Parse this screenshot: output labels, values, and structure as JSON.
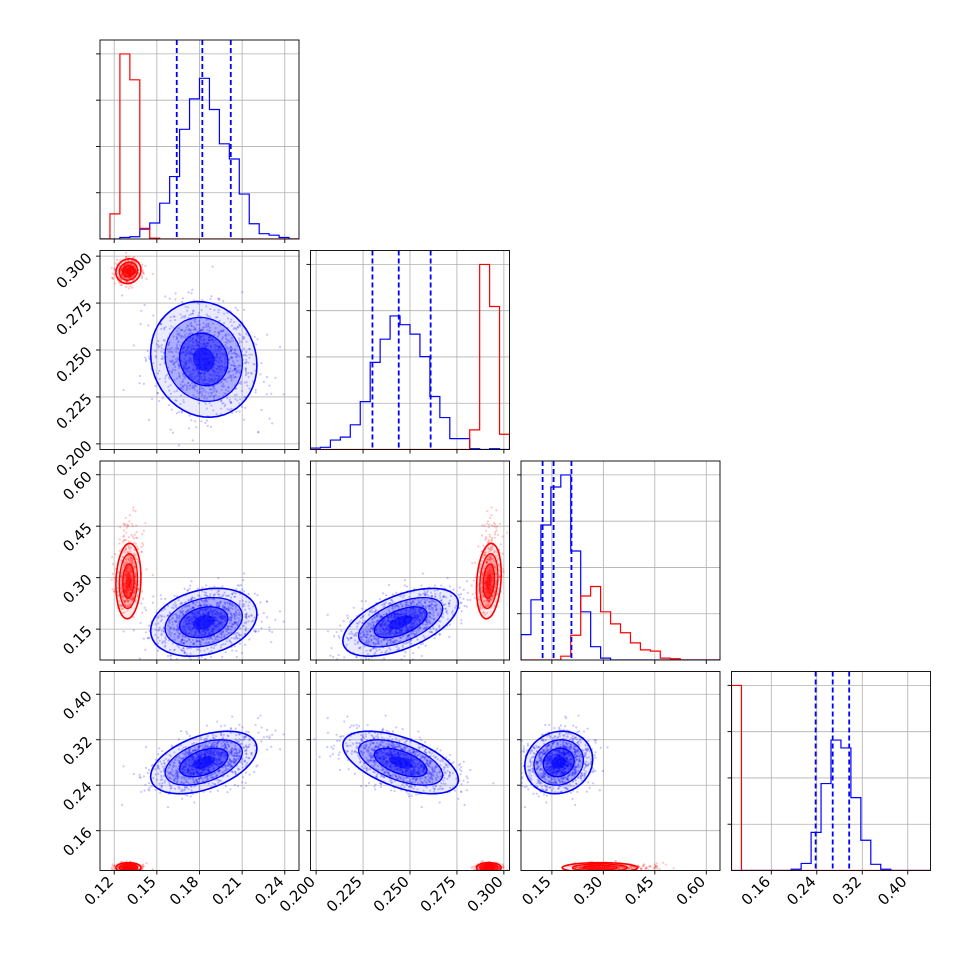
{
  "chart_data": {
    "type": "corner",
    "parameters": 4,
    "colors": {
      "posterior_a": "#0000ff",
      "posterior_b": "#ff0000",
      "grid": "#b0b0b0",
      "axes": "#000000"
    },
    "grid": true,
    "ranges": [
      [
        0.11,
        0.25
      ],
      [
        0.197,
        0.303
      ],
      [
        0.06,
        0.64
      ],
      [
        0.09,
        0.44
      ]
    ],
    "tick_values": [
      [
        0.12,
        0.15,
        0.18,
        0.21,
        0.24
      ],
      [
        0.2,
        0.225,
        0.25,
        0.275,
        0.3
      ],
      [
        0.15,
        0.3,
        0.45,
        0.6
      ],
      [
        0.16,
        0.24,
        0.32,
        0.4
      ]
    ],
    "tick_labels": [
      [
        "0.12",
        "0.15",
        "0.18",
        "0.21",
        "0.24"
      ],
      [
        "0.200",
        "0.225",
        "0.250",
        "0.275",
        "0.300"
      ],
      [
        "0.15",
        "0.30",
        "0.45",
        "0.60"
      ],
      [
        "0.16",
        "0.24",
        "0.32",
        "0.40"
      ]
    ],
    "quantile_lines": [
      [
        0.164,
        0.182,
        0.202
      ],
      [
        0.23,
        0.244,
        0.261
      ],
      [
        0.123,
        0.155,
        0.207
      ],
      [
        0.238,
        0.268,
        0.297
      ]
    ],
    "series": [
      {
        "name": "",
        "color": "#0000ff",
        "center": [
          0.183,
          0.245,
          0.17,
          0.28
        ],
        "sigma": [
          0.017,
          0.014,
          0.045,
          0.025
        ],
        "correlations": [
          [
            0,
            1,
            -0.1
          ],
          [
            0,
            2,
            0.25
          ],
          [
            0,
            3,
            0.45
          ],
          [
            1,
            2,
            0.55
          ],
          [
            1,
            3,
            -0.55
          ],
          [
            2,
            3,
            0.1
          ]
        ]
      },
      {
        "name": "",
        "color": "#ff0000",
        "center": [
          0.13,
          0.292,
          0.29,
          0.095
        ],
        "sigma": [
          0.004,
          0.003,
          0.05,
          0.004
        ],
        "correlations": [
          [
            0,
            1,
            0.1
          ],
          [
            0,
            2,
            0.1
          ],
          [
            0,
            3,
            0.0
          ],
          [
            1,
            2,
            0.2
          ],
          [
            1,
            3,
            0.0
          ],
          [
            2,
            3,
            0.0
          ]
        ]
      }
    ]
  }
}
